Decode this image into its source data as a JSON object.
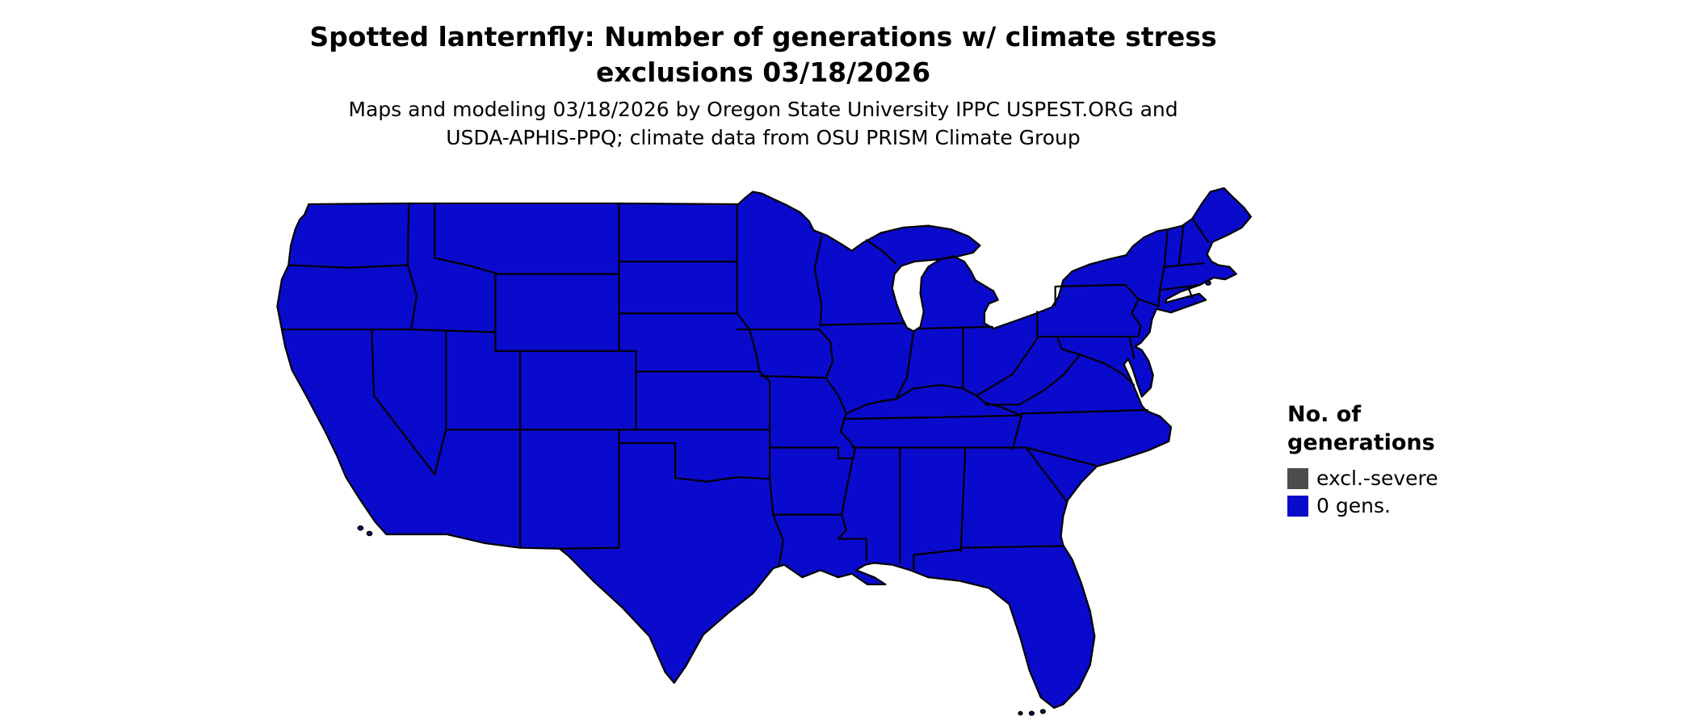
{
  "figure": {
    "title_line1": "Spotted lanternfly: Number of generations w/ climate stress",
    "title_line2": "exclusions 03/18/2026",
    "subtitle_line1": "Maps and modeling 03/18/2026 by Oregon State University IPPC USPEST.ORG and",
    "subtitle_line2": "USDA-APHIS-PPQ; climate data from OSU PRISM Climate Group"
  },
  "legend": {
    "title_line1": "No. of",
    "title_line2": "generations",
    "items": [
      {
        "label": "excl.-severe",
        "color": "#4D4D4D"
      },
      {
        "label": "0 gens.",
        "color": "#0A0ACD"
      }
    ]
  },
  "map": {
    "region": "Contiguous United States",
    "fill_color": "#0A0ACD",
    "border_color": "#000000",
    "background_color": "#FFFFFF"
  }
}
